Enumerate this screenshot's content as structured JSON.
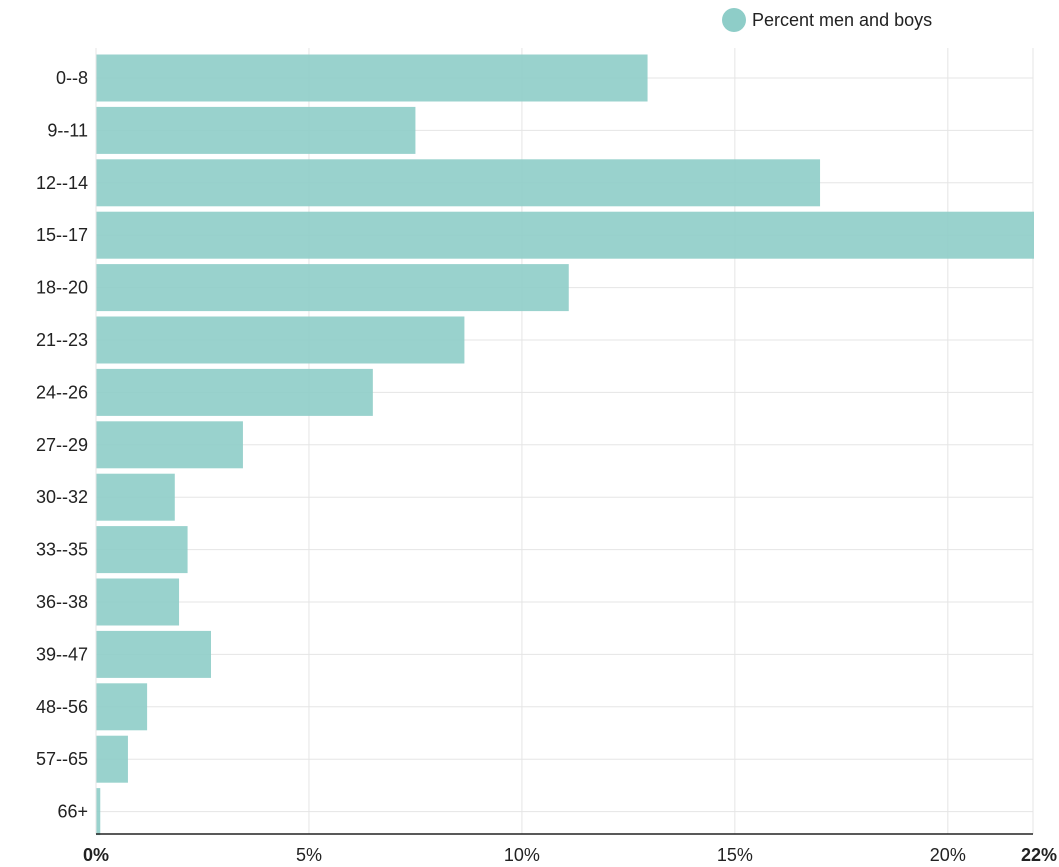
{
  "chart_data": {
    "type": "bar",
    "orientation": "horizontal",
    "categories": [
      "0--8",
      "9--11",
      "12--14",
      "15--17",
      "18--20",
      "21--23",
      "24--26",
      "27--29",
      "30--32",
      "33--35",
      "36--38",
      "39--47",
      "48--56",
      "57--65",
      "66+"
    ],
    "series": [
      {
        "name": "Percent men and boys",
        "values": [
          12.95,
          7.5,
          17.0,
          22.25,
          11.1,
          8.65,
          6.5,
          3.45,
          1.85,
          2.15,
          1.95,
          2.7,
          1.2,
          0.75,
          0.1
        ],
        "color": "#8ecdc8"
      }
    ],
    "xlim": [
      0,
      22
    ],
    "x_ticks": [
      {
        "value": 0,
        "label": "0%",
        "bold": true
      },
      {
        "value": 5,
        "label": "5%",
        "bold": false
      },
      {
        "value": 10,
        "label": "10%",
        "bold": false
      },
      {
        "value": 15,
        "label": "15%",
        "bold": false
      },
      {
        "value": 20,
        "label": "20%",
        "bold": false
      },
      {
        "value": 22,
        "label": "22%",
        "bold": true
      }
    ],
    "grid": true,
    "legend_position": "top-right",
    "title": "",
    "xlabel": "",
    "ylabel": ""
  },
  "colors": {
    "bar": "#8ecdc8",
    "grid": "#e5e5e5",
    "axis": "#222222"
  }
}
